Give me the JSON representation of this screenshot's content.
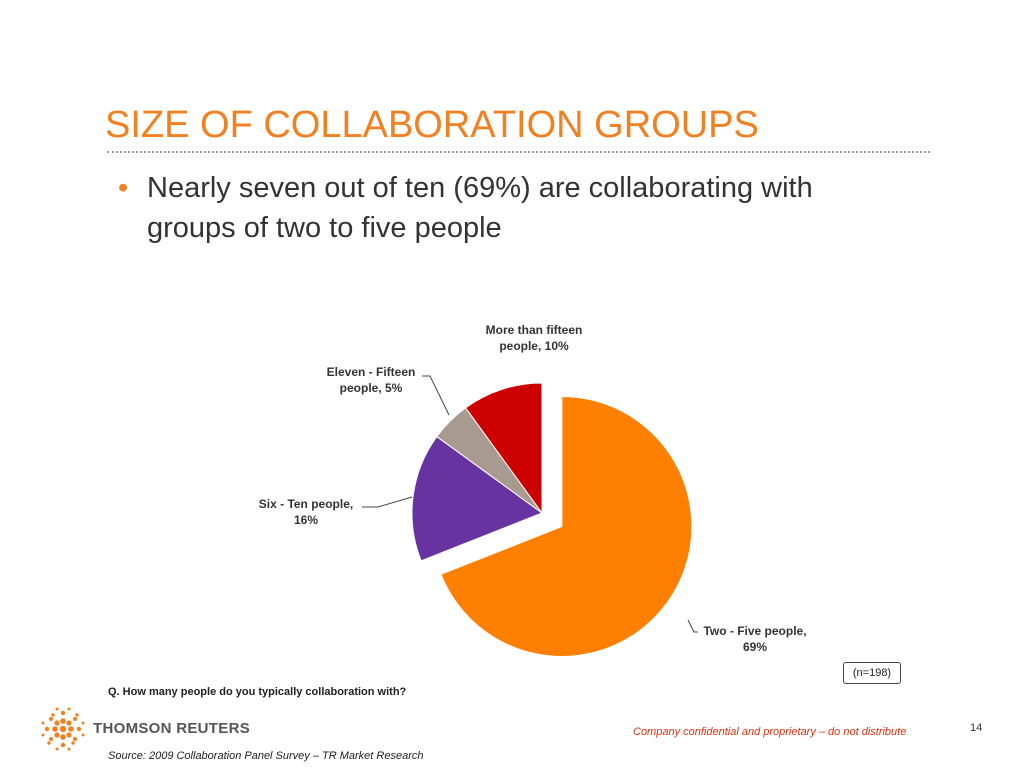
{
  "slide": {
    "title": "SIZE OF COLLABORATION GROUPS",
    "bullet": "Nearly seven out of ten (69%) are collaborating with groups of two to five people",
    "sample_size": "(n=198)",
    "question": "Q. How many people do you typically collaboration with?",
    "logo_text": "THOMSON REUTERS",
    "confidential": "Company confidential and proprietary – do not distribute",
    "page_number": "14",
    "source": "Source:  2009 Collaboration Panel Survey – TR Market Research"
  },
  "colors": {
    "title": "#f08020",
    "bullet_marker": "#f08020",
    "confidential": "#e03010"
  },
  "chart_data": {
    "type": "pie",
    "exploded_slice": "Two - Five people",
    "series": [
      {
        "label": "Two - Five people",
        "value": 69,
        "color": "#ff8000",
        "label_lines": [
          "Two - Five people,",
          "69%"
        ]
      },
      {
        "label": "Six - Ten people",
        "value": 16,
        "color": "#6633a0",
        "label_lines": [
          "Six - Ten people,",
          "16%"
        ]
      },
      {
        "label": "Eleven - Fifteen people",
        "value": 5,
        "color": "#a89a90",
        "label_lines": [
          "Eleven - Fifteen",
          "people, 5%"
        ]
      },
      {
        "label": "More than fifteen people",
        "value": 10,
        "color": "#cc0000",
        "label_lines": [
          "More than fifteen",
          "people, 10%"
        ]
      }
    ]
  }
}
